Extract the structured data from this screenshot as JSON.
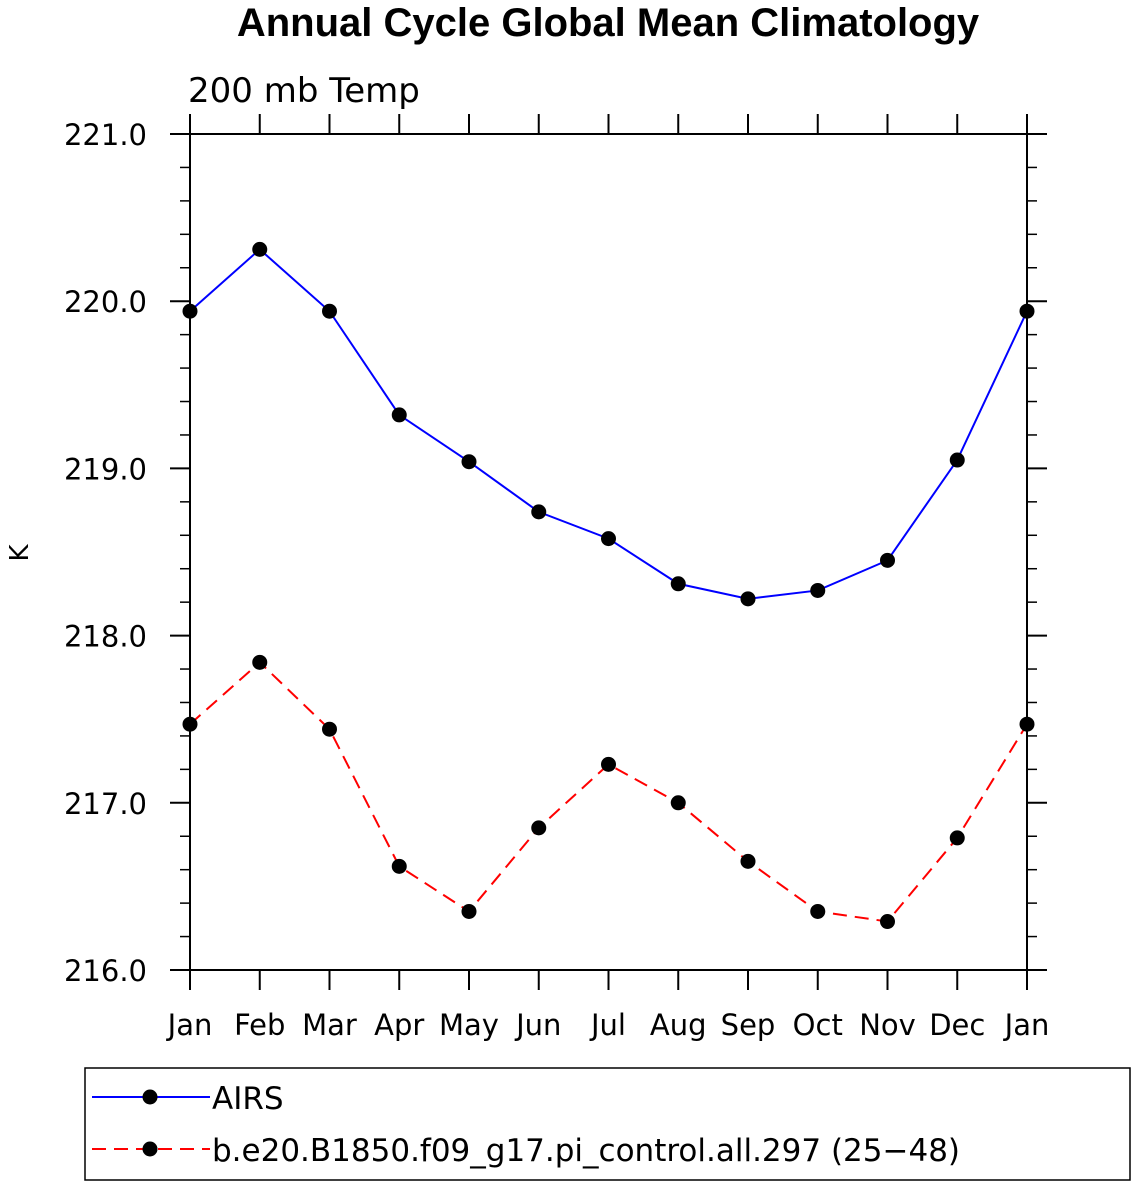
{
  "chart_data": {
    "type": "line",
    "title": "Annual Cycle Global Mean Climatology",
    "subtitle": "200 mb Temp",
    "xlabel": "",
    "ylabel": "K",
    "categories": [
      "Jan",
      "Feb",
      "Mar",
      "Apr",
      "May",
      "Jun",
      "Jul",
      "Aug",
      "Sep",
      "Oct",
      "Nov",
      "Dec",
      "Jan"
    ],
    "ylim": [
      216.0,
      221.0
    ],
    "yticks": [
      216.0,
      217.0,
      218.0,
      219.0,
      220.0,
      221.0
    ],
    "ytick_labels": [
      "216.0",
      "217.0",
      "218.0",
      "219.0",
      "220.0",
      "221.0"
    ],
    "series": [
      {
        "name": "AIRS",
        "color": "#0000ff",
        "dash": "solid",
        "values": [
          219.94,
          220.31,
          219.94,
          219.32,
          219.04,
          218.74,
          218.58,
          218.31,
          218.22,
          218.27,
          218.45,
          219.05,
          219.94
        ]
      },
      {
        "name": "b.e20.B1850.f09_g17.pi_control.all.297 (25−48)",
        "color": "#ff0000",
        "dash": "dashed",
        "values": [
          217.47,
          217.84,
          217.44,
          216.62,
          216.35,
          216.85,
          217.23,
          217.0,
          216.65,
          216.35,
          216.29,
          216.79,
          217.47
        ]
      }
    ],
    "legend_position": "bottom"
  }
}
